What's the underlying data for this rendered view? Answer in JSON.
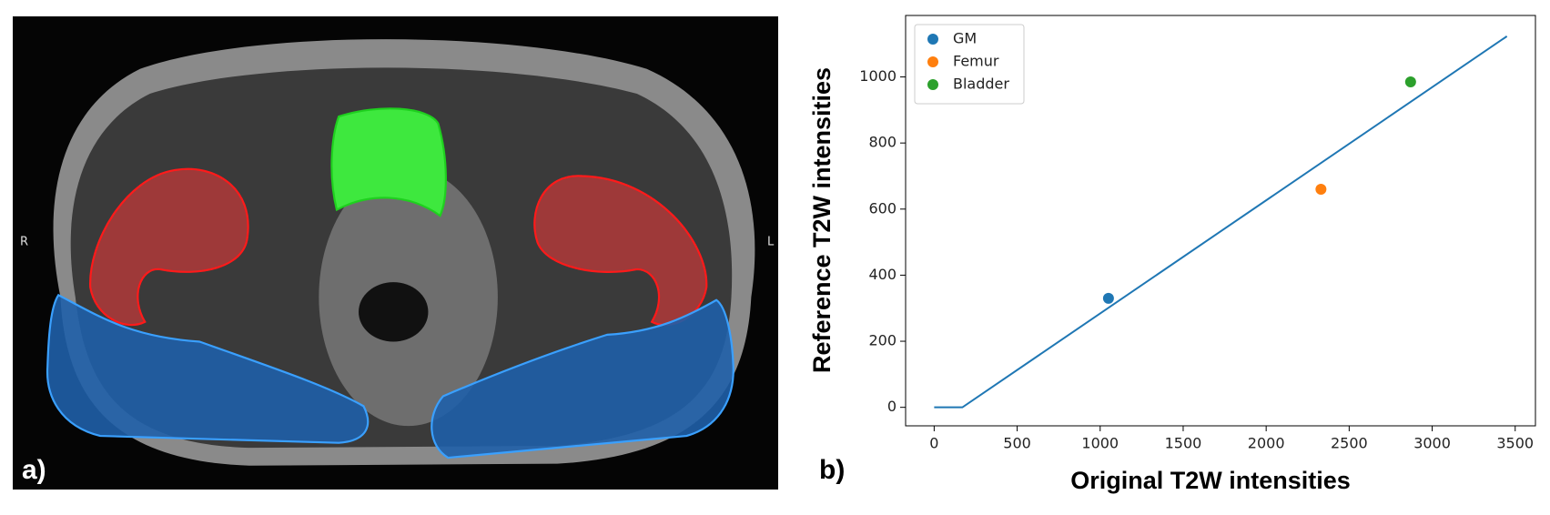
{
  "image_panel": {
    "label": "a)",
    "left_marker": "R",
    "right_marker": "L"
  },
  "chart_data": {
    "type": "scatter",
    "panel_label": "b)",
    "x_label": "Original T2W intensities",
    "y_label": "Reference T2W intensities",
    "xlim": [
      -172,
      3622
    ],
    "ylim": [
      -56,
      1186
    ],
    "xticks": [
      0,
      500,
      1000,
      1500,
      2000,
      2500,
      3000,
      3500
    ],
    "yticks": [
      0,
      200,
      400,
      600,
      800,
      1000
    ],
    "legend": "upper left",
    "series": [
      {
        "name": "GM",
        "color": "#1f77b4",
        "x": [
          1050
        ],
        "values": [
          330
        ]
      },
      {
        "name": "Femur",
        "color": "#ff7f0e",
        "x": [
          2330
        ],
        "values": [
          660
        ]
      },
      {
        "name": "Bladder",
        "color": "#2ca02c",
        "x": [
          2870
        ],
        "values": [
          985
        ]
      }
    ],
    "line": {
      "color": "#1f77b4",
      "x": [
        0,
        170,
        3450
      ],
      "values": [
        0,
        0,
        1123
      ]
    }
  }
}
